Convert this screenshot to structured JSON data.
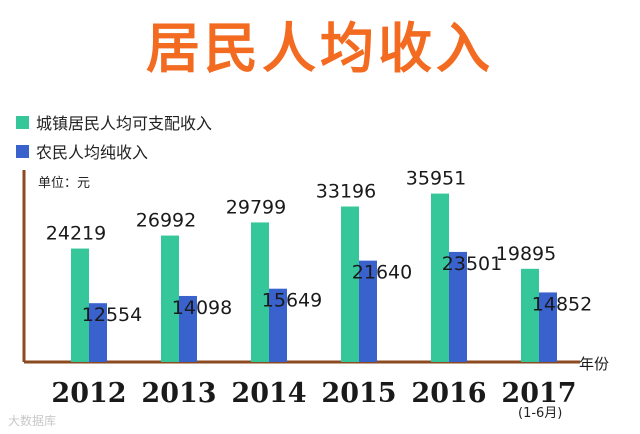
{
  "colors": {
    "title": "#f26b21",
    "urban": "#35c79a",
    "rural": "#3a62cc",
    "axis": "#8b4a1f"
  },
  "watermark": "大数据库",
  "chart_data": {
    "type": "bar",
    "title": "居民人均收入",
    "unit_label": "单位：元",
    "xlabel": "年份",
    "ylabel": "",
    "categories": [
      "2012",
      "2013",
      "2014",
      "2015",
      "2016",
      "2017"
    ],
    "category_notes": [
      "",
      "",
      "",
      "",
      "",
      "(1-6月)"
    ],
    "series": [
      {
        "name": "城镇居民人均可支配收入",
        "values": [
          24219,
          26992,
          29799,
          33196,
          35951,
          19895
        ]
      },
      {
        "name": "农民人均纯收入",
        "values": [
          12554,
          14098,
          15649,
          21640,
          23501,
          14852
        ]
      }
    ],
    "ylim": [
      0,
      38000
    ],
    "grid": false,
    "legend": "top-left"
  }
}
